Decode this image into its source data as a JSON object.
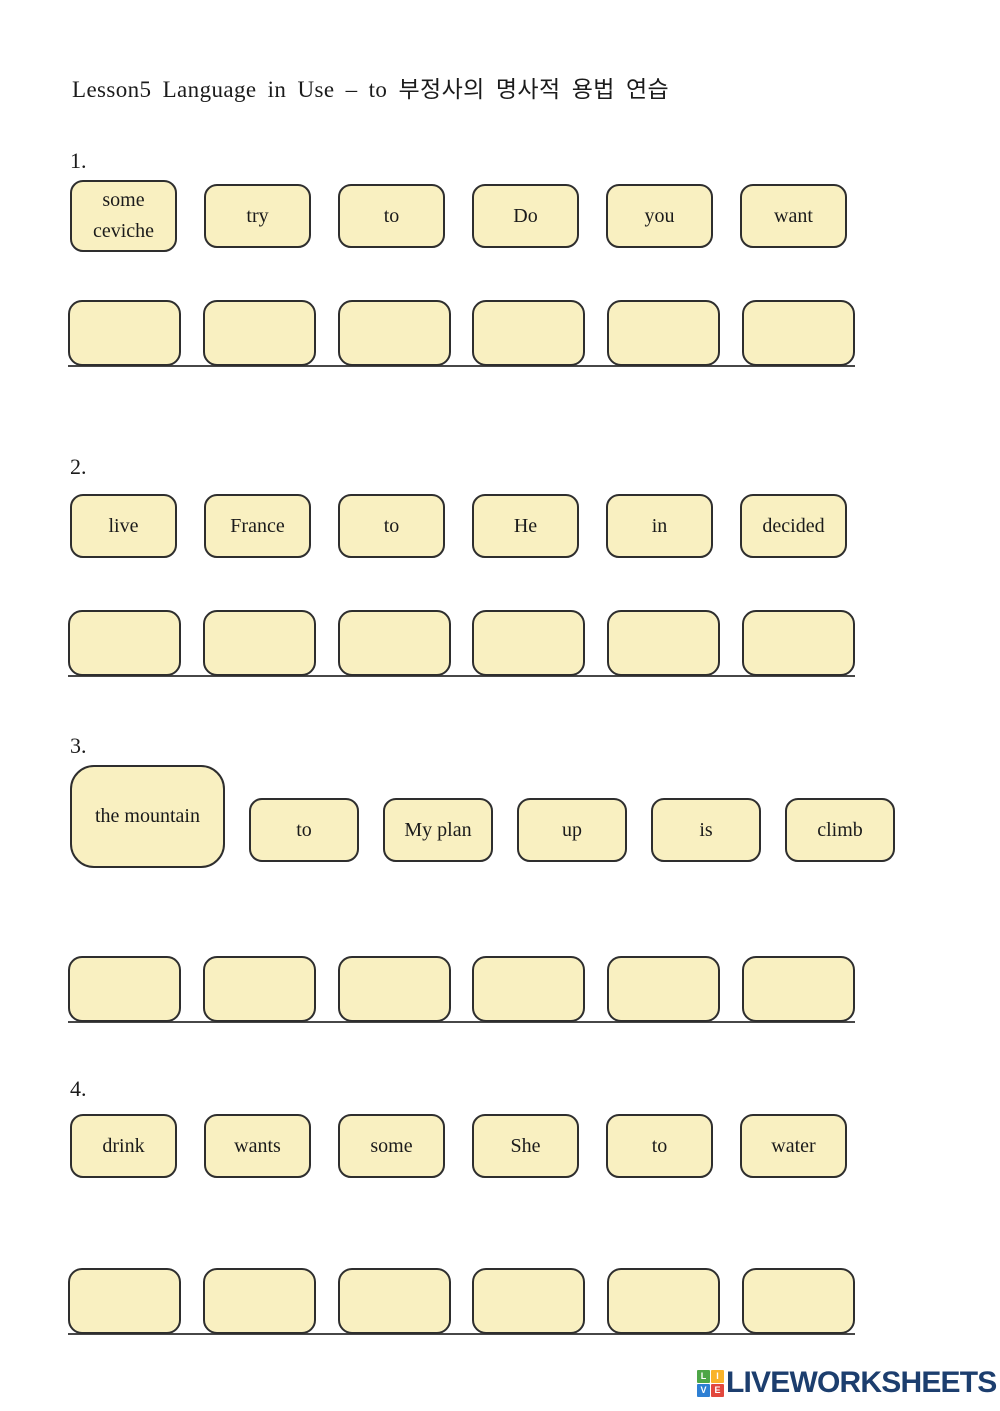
{
  "title": "Lesson5 Language in Use – to 부정사의 명사적 용법 연습",
  "exercises": [
    {
      "number": "1.",
      "cards": [
        {
          "label": "some ceviche"
        },
        {
          "label": "try"
        },
        {
          "label": "to"
        },
        {
          "label": "Do"
        },
        {
          "label": "you"
        },
        {
          "label": "want"
        }
      ],
      "blanks": 6
    },
    {
      "number": "2.",
      "cards": [
        {
          "label": "live"
        },
        {
          "label": "France"
        },
        {
          "label": "to"
        },
        {
          "label": "He"
        },
        {
          "label": "in"
        },
        {
          "label": "decided"
        }
      ],
      "blanks": 6
    },
    {
      "number": "3.",
      "cards": [
        {
          "label": "the mountain",
          "big": true
        },
        {
          "label": "to"
        },
        {
          "label": "My plan"
        },
        {
          "label": "up"
        },
        {
          "label": "is"
        },
        {
          "label": "climb"
        }
      ],
      "blanks": 6
    },
    {
      "number": "4.",
      "cards": [
        {
          "label": "drink"
        },
        {
          "label": "wants"
        },
        {
          "label": "some"
        },
        {
          "label": "She"
        },
        {
          "label": "to"
        },
        {
          "label": "water"
        }
      ],
      "blanks": 6
    }
  ],
  "footer": {
    "brand": "LIVEWORKSHEETS",
    "grid_letters": [
      "L",
      "I",
      "V",
      "E"
    ]
  },
  "colors": {
    "card_fill": "#F9F0C1",
    "card_border": "#2E2E2E",
    "baseline": "#474747",
    "brand_navy": "#1C3E6E",
    "square_green": "#4DA647",
    "square_yellow": "#F9B32A",
    "square_blue": "#2D7FD3",
    "square_red": "#E2483D"
  }
}
